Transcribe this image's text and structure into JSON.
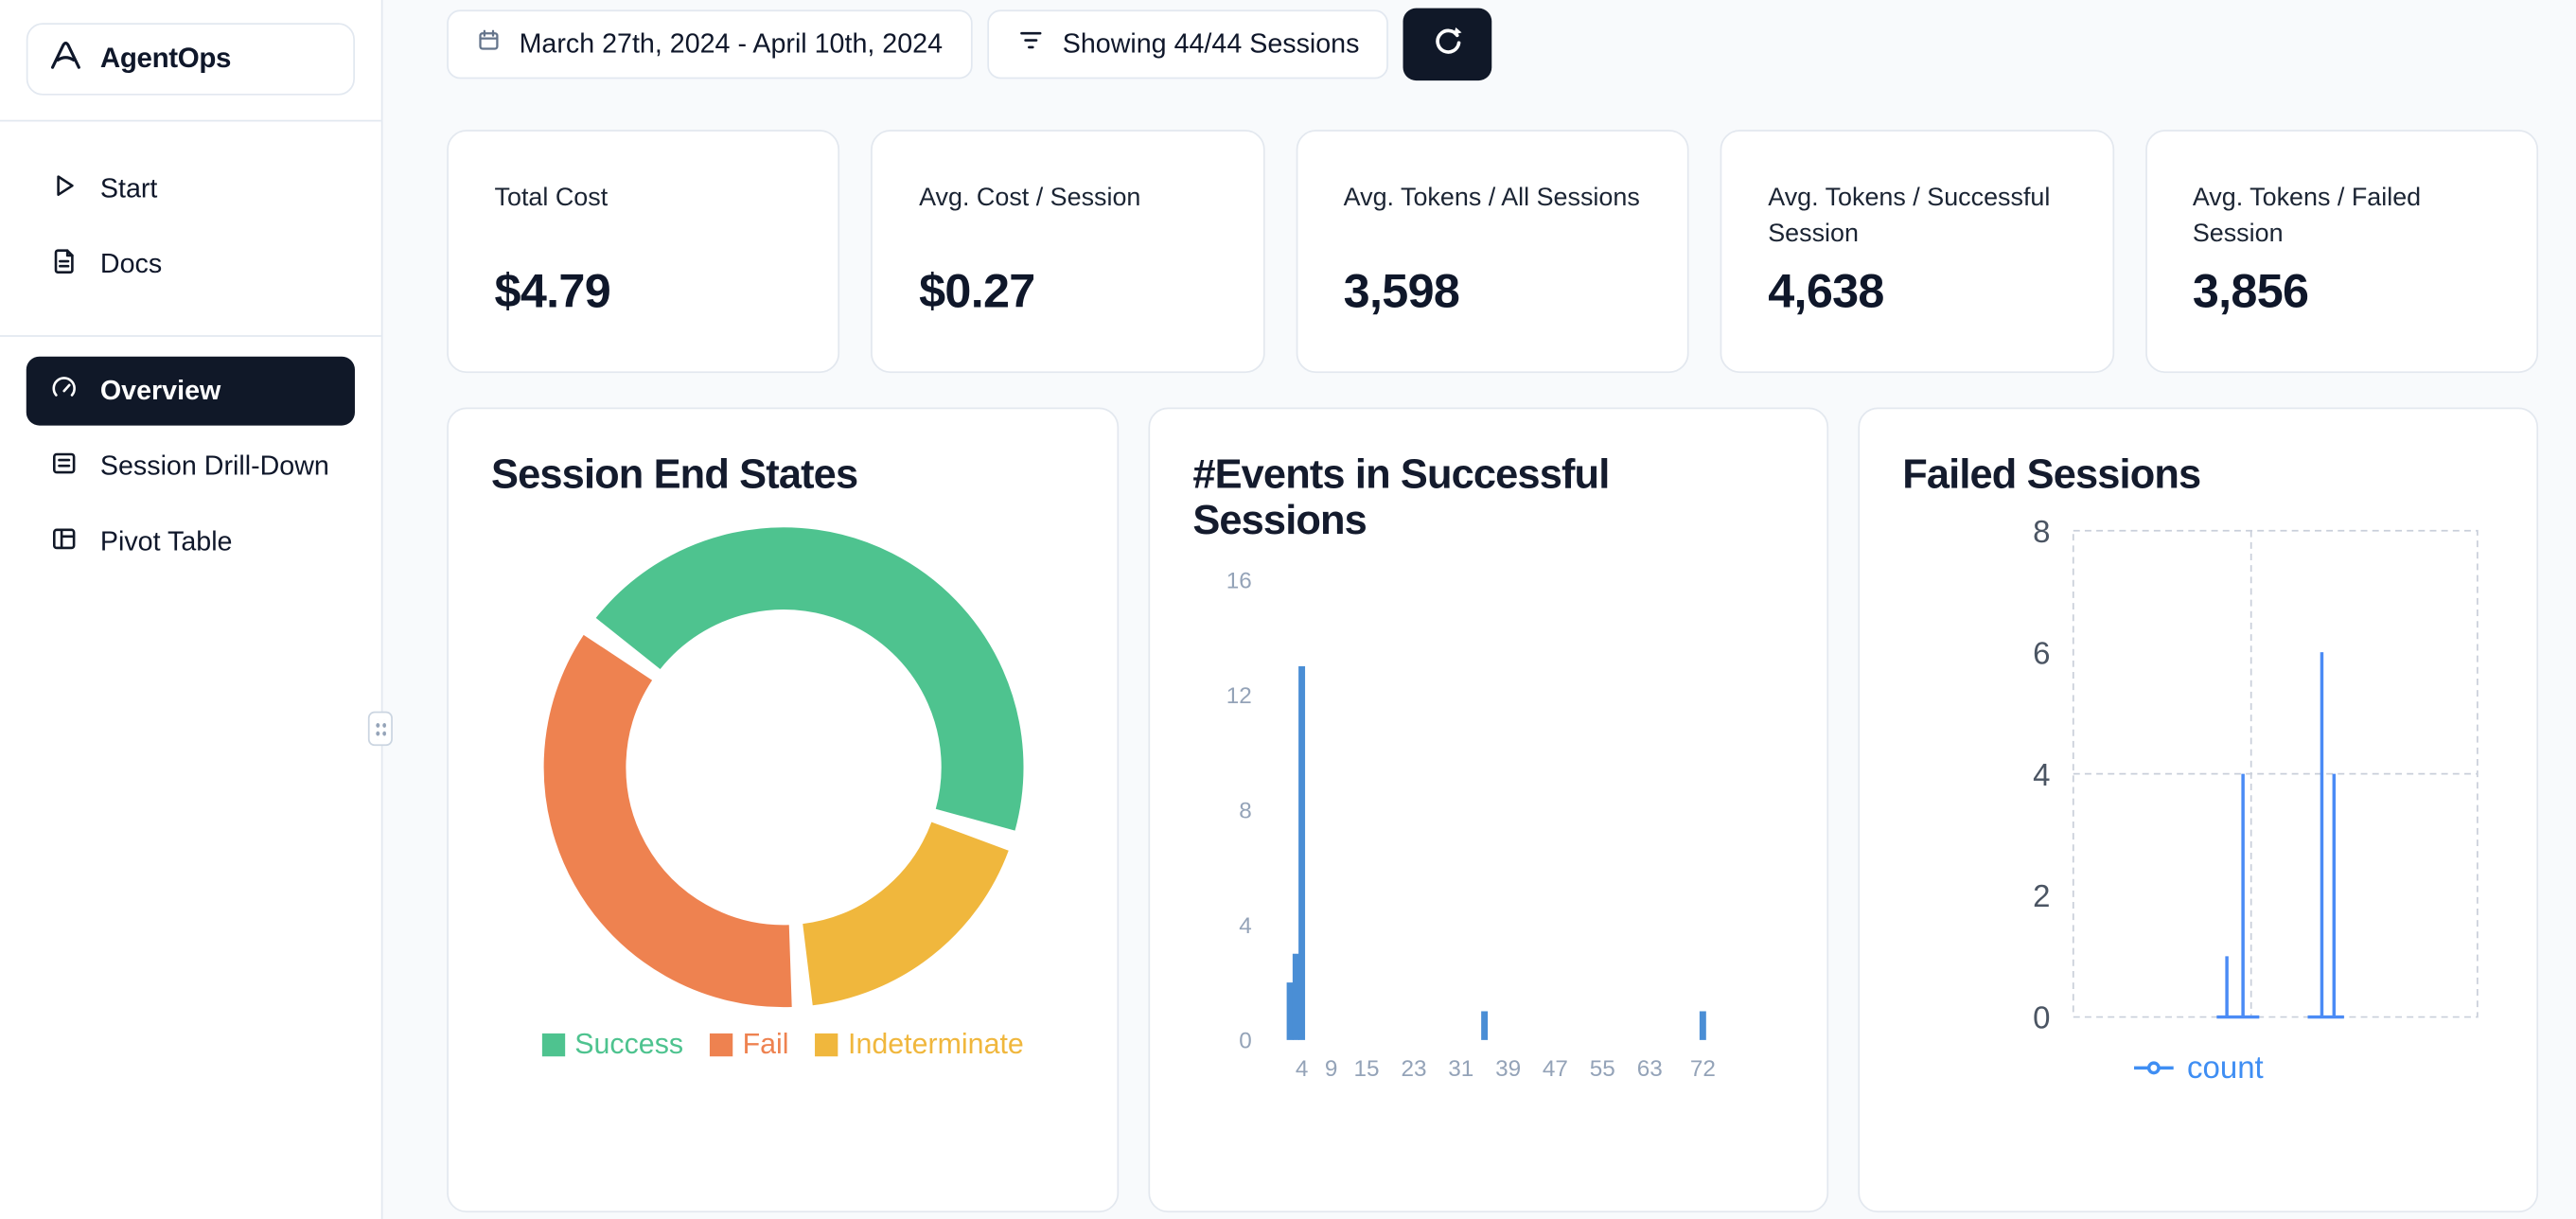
{
  "app": {
    "name": "AgentOps"
  },
  "sidebar": {
    "logo_label": "AgentOps",
    "nav_top": [
      {
        "label": "Start",
        "icon": "play-icon"
      },
      {
        "label": "Docs",
        "icon": "docs-icon"
      }
    ],
    "nav_main": [
      {
        "label": "Overview",
        "icon": "gauge-icon",
        "active": true
      },
      {
        "label": "Session Drill-Down",
        "icon": "panel-icon",
        "active": false
      },
      {
        "label": "Pivot Table",
        "icon": "columns-icon",
        "active": false
      }
    ]
  },
  "toolbar": {
    "date_range": "March 27th, 2024 - April 10th, 2024",
    "sessions_filter": "Showing 44/44 Sessions",
    "icons": {
      "date": "calendar-icon",
      "filter": "filter-icon",
      "refresh": "refresh-icon"
    }
  },
  "stats": [
    {
      "label": "Total Cost",
      "value": "$4.79"
    },
    {
      "label": "Avg. Cost / Session",
      "value": "$0.27"
    },
    {
      "label": "Avg. Tokens / All Sessions",
      "value": "3,598"
    },
    {
      "label": "Avg. Tokens / Successful Session",
      "value": "4,638"
    },
    {
      "label": "Avg. Tokens / Failed Session",
      "value": "3,856"
    }
  ],
  "chart_data": [
    {
      "id": "session_end_states",
      "type": "pie",
      "title": "Session End States",
      "total_sessions": 44,
      "start_angle_deg": -54,
      "gap_deg": 5,
      "slices": [
        {
          "label": "Success",
          "value": 20,
          "color": "#4ec38f"
        },
        {
          "label": "Indeterminate",
          "value": 8,
          "color": "#f0b73d"
        },
        {
          "label": "Fail",
          "value": 16,
          "color": "#ee8250"
        }
      ],
      "legend": [
        {
          "label": "Success",
          "color": "#4ec38f"
        },
        {
          "label": "Fail",
          "color": "#ee8250"
        },
        {
          "label": "Indeterminate",
          "color": "#f0b73d"
        }
      ],
      "legend_position": "bottom"
    },
    {
      "id": "events_in_successful_sessions",
      "type": "bar",
      "title": "#Events in Successful Sessions",
      "bar_color": "#4a8ed5",
      "xlim": [
        0,
        78
      ],
      "ylim": [
        0,
        16
      ],
      "yticks": [
        0,
        4,
        8,
        12,
        16
      ],
      "xticks": [
        4,
        9,
        15,
        23,
        31,
        39,
        47,
        55,
        63,
        72
      ],
      "bars": [
        {
          "x": 2,
          "count": 2
        },
        {
          "x": 3,
          "count": 3
        },
        {
          "x": 4,
          "count": 13
        },
        {
          "x": 35,
          "count": 1
        },
        {
          "x": 72,
          "count": 1
        }
      ],
      "grid": false
    },
    {
      "id": "failed_sessions",
      "type": "line",
      "title": "Failed Sessions",
      "series_label": "count",
      "line_color": "#4b8bf5",
      "ylim": [
        0,
        8
      ],
      "yticks": [
        0,
        2,
        4,
        6,
        8
      ],
      "grid_dashed": true,
      "spikes": [
        {
          "x": 0.38,
          "y": 1
        },
        {
          "x": 0.42,
          "y": 4
        },
        {
          "x": 0.615,
          "y": 6
        },
        {
          "x": 0.645,
          "y": 4
        }
      ],
      "baseline_segments": [
        [
          0.355,
          0.46
        ],
        [
          0.58,
          0.67
        ]
      ],
      "legend_position": "bottom"
    }
  ]
}
